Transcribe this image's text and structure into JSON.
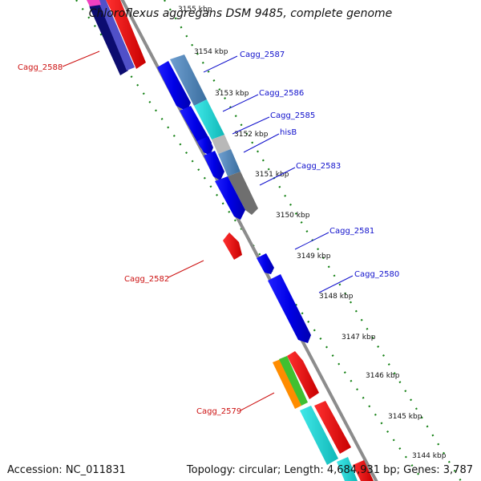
{
  "title": "Chloroflexus aggregans DSM 9485, complete genome",
  "accession": "Accession: NC_011831",
  "topology": "Topology: circular; Length: 4,684,931 bp; Genes: 3,787",
  "colors": {
    "backbone": "#8c8c8c",
    "gc_track": "#138013",
    "fwd_label": "#1010cc",
    "rev_label": "#cc1010"
  },
  "kbp_ticks": [
    "3155 kbp",
    "3154 kbp",
    "3153 kbp",
    "3152 kbp",
    "3151 kbp",
    "3150 kbp",
    "3149 kbp",
    "3148 kbp",
    "3147 kbp",
    "3146 kbp",
    "3145 kbp",
    "3144 kbp"
  ],
  "gene_labels": {
    "cagg_2588": "Cagg_2588",
    "cagg_2587": "Cagg_2587",
    "cagg_2586": "Cagg_2586",
    "cagg_2585": "Cagg_2585",
    "hisb": "hisB",
    "cagg_2583": "Cagg_2583",
    "cagg_2581": "Cagg_2581",
    "cagg_2582": "Cagg_2582",
    "cagg_2580": "Cagg_2580",
    "cagg_2579": "Cagg_2579"
  }
}
